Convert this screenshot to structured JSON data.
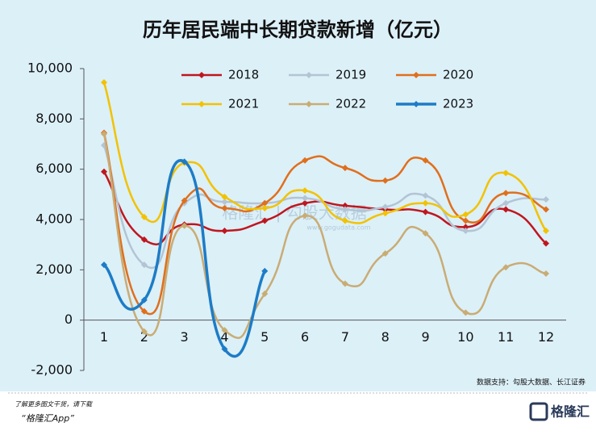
{
  "chart_data": {
    "type": "line",
    "title": "历年居民端中长期贷款新增（亿元）",
    "categories": [
      1,
      2,
      3,
      4,
      5,
      6,
      7,
      8,
      9,
      10,
      11,
      12
    ],
    "series": [
      {
        "name": "2018",
        "color": "#c0161e",
        "values": [
          5900,
          3200,
          3800,
          3550,
          3950,
          4650,
          4550,
          4400,
          4300,
          3700,
          4400,
          3050
        ]
      },
      {
        "name": "2019",
        "color": "#b3c4d4",
        "values": [
          6950,
          2200,
          4650,
          4700,
          4650,
          4850,
          4400,
          4500,
          4950,
          3550,
          4650,
          4800
        ]
      },
      {
        "name": "2020",
        "color": "#e06f1c",
        "values": [
          7450,
          350,
          4750,
          4450,
          4650,
          6350,
          6050,
          5550,
          6350,
          3950,
          5050,
          4400
        ]
      },
      {
        "name": "2021",
        "color": "#f2c200",
        "values": [
          9450,
          4100,
          6250,
          4900,
          4450,
          5150,
          3950,
          4250,
          4650,
          4200,
          5850,
          3550
        ]
      },
      {
        "name": "2022",
        "color": "#c9ac74",
        "values": [
          7400,
          -450,
          3750,
          -400,
          1050,
          4150,
          1450,
          2650,
          3450,
          300,
          2100,
          1850
        ]
      },
      {
        "name": "2023",
        "color": "#1d7cc6",
        "values": [
          2200,
          800,
          6300,
          -1150,
          1950,
          null,
          null,
          null,
          null,
          null,
          null,
          null
        ]
      }
    ],
    "ylim": [
      -2000,
      10000
    ],
    "yticks": [
      {
        "value": -2000,
        "label": "-2,000"
      },
      0,
      {
        "value": 2000,
        "label": "2,000"
      },
      {
        "value": 4000,
        "label": "4,000"
      },
      {
        "value": 6000,
        "label": "6,000"
      },
      {
        "value": 8000,
        "label": "8,000"
      },
      {
        "value": 10000,
        "label": "10,000"
      }
    ],
    "source": "数据支持：勾股大数据、长江证券",
    "watermark": "格隆汇 | 勾股大数据",
    "watermark_url": "www.gogudata.com",
    "footer_note": "了解更多图文干货，请下载",
    "footer_app": "“格隆汇App”",
    "logo": "格隆汇"
  }
}
